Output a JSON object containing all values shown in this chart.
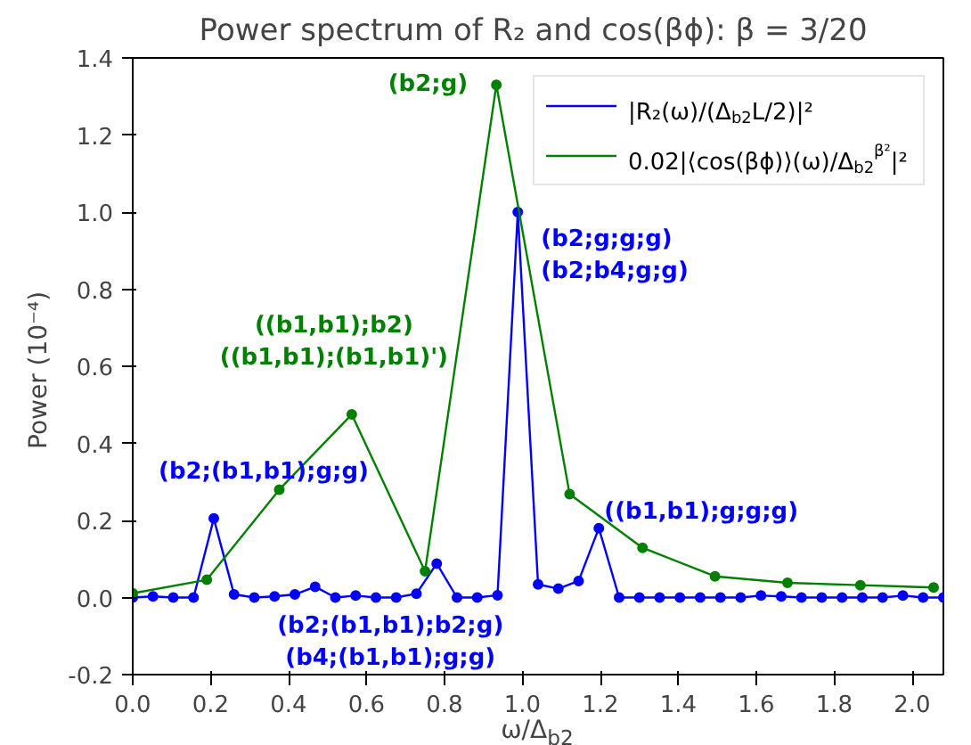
{
  "chart_data": {
    "type": "line",
    "title": "Power spectrum of R₂ and  cos(βϕ): β = 3/20",
    "xlabel": "ω/Δ$_{b2}$",
    "ylabel": "Power  (10⁻⁴)",
    "xlim": [
      0,
      2.08
    ],
    "xticks": [
      {
        "value": 0,
        "label": "0.0"
      },
      0.2,
      0.4,
      0.6,
      0.8,
      {
        "value": 1,
        "label": "1.0"
      },
      1.2,
      1.4,
      1.6,
      1.8,
      {
        "value": 2,
        "label": "2.0"
      }
    ],
    "ylim": [
      -0.2,
      1.4
    ],
    "yticks": [
      -0.2,
      {
        "value": 0,
        "label": "0.0"
      },
      0.2,
      0.4,
      0.6,
      0.8,
      {
        "value": 1,
        "label": "1.0"
      },
      1.2,
      1.4
    ],
    "grid": false,
    "legend": "top right",
    "marker": "circle",
    "line_style": "solid",
    "series": [
      {
        "name": "|R₂(ω)/(Δ$_{b2}$L/2)|²",
        "color": "#0000ff",
        "x": [
          0.0,
          0.052,
          0.104,
          0.156,
          0.208,
          0.26,
          0.312,
          0.364,
          0.416,
          0.468,
          0.52,
          0.572,
          0.624,
          0.676,
          0.728,
          0.78,
          0.832,
          0.884,
          0.936,
          0.988,
          1.04,
          1.092,
          1.144,
          1.196,
          1.248,
          1.3,
          1.352,
          1.404,
          1.456,
          1.508,
          1.56,
          1.612,
          1.664,
          1.716,
          1.768,
          1.82,
          1.872,
          1.924,
          1.976,
          2.028,
          2.08
        ],
        "values": [
          0.0,
          0.003,
          0.0,
          0.0,
          0.205,
          0.008,
          0.0,
          0.003,
          0.008,
          0.028,
          0.0,
          0.005,
          0.0,
          0.0,
          0.01,
          0.088,
          0.0,
          0.0,
          0.006,
          1.0,
          0.034,
          0.023,
          0.043,
          0.18,
          0.0,
          0.0,
          0.0,
          0.0,
          0.0,
          0.0,
          0.0,
          0.005,
          0.003,
          0.0,
          0.0,
          0.0,
          0.0,
          0.0,
          0.005,
          0.0,
          0.0
        ]
      },
      {
        "name": "0.02|⟨cos(βϕ)⟩(ω)/Δ$_{b2}$$^{β²}$|²",
        "color": "#008000",
        "x": [
          0.0,
          0.19,
          0.376,
          0.562,
          0.75,
          0.933,
          1.121,
          1.308,
          1.494,
          1.68,
          1.867,
          2.055
        ],
        "values": [
          0.011,
          0.046,
          0.28,
          0.475,
          0.068,
          1.33,
          0.268,
          0.129,
          0.055,
          0.038,
          0.032,
          0.026
        ]
      }
    ],
    "annotations": [
      {
        "text": "(b2;g)",
        "x": 0.933,
        "y": 1.33
      },
      {
        "text": "((b1,b1);b2)\n((b1,b1);(b1,b1)')",
        "x": 0.562,
        "y": 0.475
      },
      {
        "text": "(b2;g;g;g)\n(b2;b4;g;g)",
        "x": 0.988,
        "y": 1.0
      },
      {
        "text": "(b2;(b1,b1);g;g)",
        "x": 0.208,
        "y": 0.205
      },
      {
        "text": "(b2;(b1,b1);b2;g)\n(b4;(b1,b1);g;g)",
        "x": 0.78,
        "y": 0.088
      },
      {
        "text": "((b1,b1);g;g;g)",
        "x": 1.196,
        "y": 0.18
      }
    ]
  }
}
